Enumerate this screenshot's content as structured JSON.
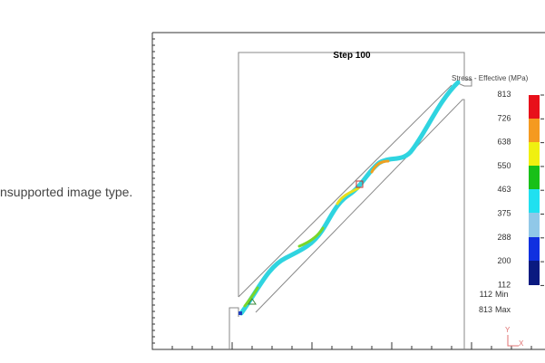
{
  "message": "nsupported image type.",
  "viewer": {
    "title": "Step  100",
    "legend_title": "Stress - Effective (MPa)",
    "legend_values": [
      813,
      726,
      638,
      550,
      463,
      375,
      288,
      200,
      112
    ],
    "min_value": 112,
    "min_label": "Min",
    "max_value": 813,
    "max_label": "Max",
    "axis_y": "Y",
    "axis_x": "X"
  }
}
